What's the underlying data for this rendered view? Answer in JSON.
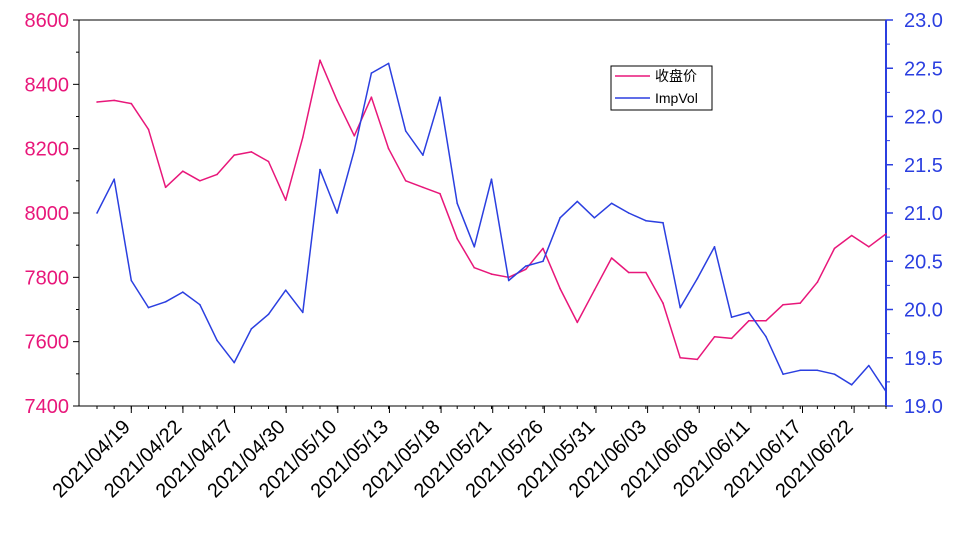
{
  "chart_data": {
    "type": "line",
    "x_tick_labels": [
      "2021/04/19",
      "2021/04/22",
      "2021/04/27",
      "2021/04/30",
      "2021/05/10",
      "2021/05/13",
      "2021/05/18",
      "2021/05/21",
      "2021/05/26",
      "2021/05/31",
      "2021/06/03",
      "2021/06/08",
      "2021/06/11",
      "2021/06/17",
      "2021/06/22"
    ],
    "y_left": {
      "range": [
        7400,
        8600
      ],
      "ticks": [
        "7400",
        "7600",
        "7800",
        "8000",
        "8200",
        "8400",
        "8600"
      ]
    },
    "y_right": {
      "range": [
        19.0,
        23.0
      ],
      "ticks": [
        "19.0",
        "19.5",
        "20.0",
        "20.5",
        "21.0",
        "21.5",
        "22.0",
        "22.5",
        "23.0"
      ]
    },
    "legend": {
      "position": "top-right-inner"
    },
    "series": [
      {
        "name": "收盘价",
        "axis": "left",
        "color": "#e8177a",
        "values": [
          8345,
          8350,
          8340,
          8260,
          8080,
          8130,
          8100,
          8120,
          8180,
          8190,
          8160,
          8040,
          8235,
          8475,
          8350,
          8240,
          8360,
          8200,
          8100,
          8080,
          8060,
          7920,
          7830,
          7810,
          7800,
          7825,
          7890,
          7765,
          7660,
          7760,
          7860,
          7815,
          7815,
          7720,
          7550,
          7545,
          7615,
          7610,
          7665,
          7665,
          7715,
          7720,
          7785,
          7890,
          7930,
          7895,
          7935
        ]
      },
      {
        "name": "ImpVol",
        "axis": "right",
        "color": "#2b3fe0",
        "values": [
          21.0,
          21.35,
          20.3,
          20.02,
          20.08,
          20.18,
          20.05,
          19.68,
          19.45,
          19.8,
          19.95,
          20.2,
          19.97,
          21.45,
          21.0,
          21.65,
          22.45,
          22.55,
          21.85,
          21.6,
          22.2,
          21.1,
          20.65,
          21.35,
          20.3,
          20.45,
          20.5,
          20.95,
          21.12,
          20.95,
          21.1,
          21.0,
          20.92,
          20.9,
          20.02,
          20.32,
          20.65,
          19.92,
          19.97,
          19.72,
          19.33,
          19.37,
          19.37,
          19.33,
          19.22,
          19.42,
          19.15
        ]
      }
    ]
  }
}
